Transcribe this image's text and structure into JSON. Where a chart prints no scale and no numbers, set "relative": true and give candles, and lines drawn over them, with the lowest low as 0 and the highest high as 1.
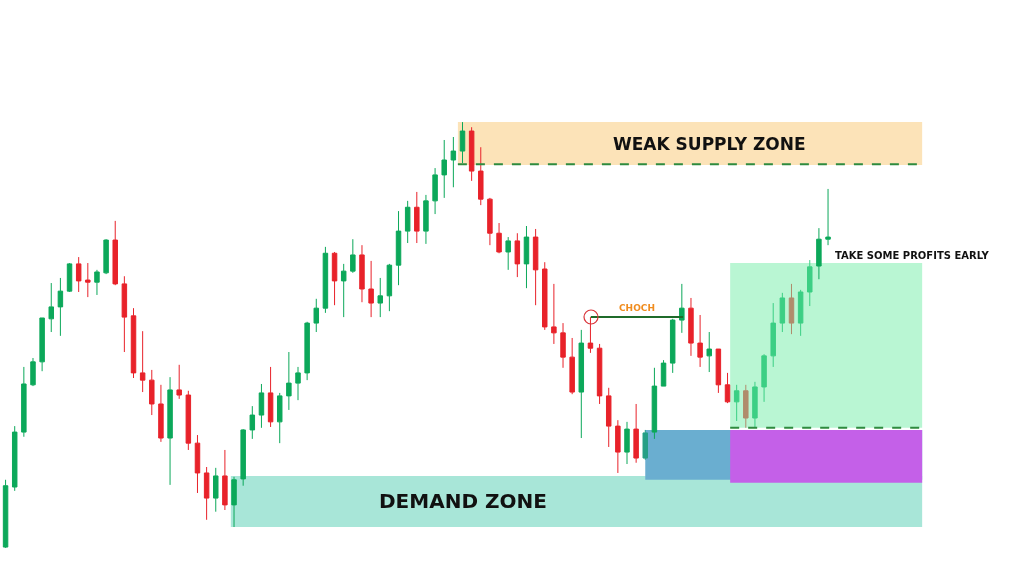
{
  "chart_data": {
    "type": "candlestick",
    "relative": true,
    "categories": [
      null,
      null,
      null,
      null,
      null,
      null,
      null,
      null,
      null,
      null,
      null,
      null,
      null,
      null,
      null,
      null,
      null,
      null,
      null,
      null,
      null,
      null,
      null,
      null,
      null,
      null,
      null,
      null,
      null,
      null,
      null,
      null,
      null,
      null,
      null,
      null,
      null,
      null,
      null,
      null,
      null,
      null,
      null,
      null,
      null,
      null,
      null,
      null,
      null,
      null,
      null,
      null,
      null,
      null,
      null,
      null,
      null,
      null,
      null,
      null,
      null,
      null,
      null,
      null,
      null,
      null,
      null,
      null,
      null,
      null,
      null,
      null,
      null,
      null,
      null,
      null,
      null,
      null,
      null,
      null,
      null,
      null,
      null,
      null,
      null,
      null,
      null,
      null,
      null,
      null,
      null
    ],
    "ohlc": [
      [
        0.002,
        0.16,
        0,
        0.146
      ],
      [
        0.143,
        0.286,
        0.134,
        0.272
      ],
      [
        0.272,
        0.425,
        0.261,
        0.385
      ],
      [
        0.383,
        0.446,
        0.38,
        0.437
      ],
      [
        0.437,
        0.54,
        0.415,
        0.54
      ],
      [
        0.538,
        0.622,
        0.507,
        0.566
      ],
      [
        0.566,
        0.634,
        0.498,
        0.603
      ],
      [
        0.603,
        0.669,
        0.601,
        0.667
      ],
      [
        0.667,
        0.683,
        0.601,
        0.627
      ],
      [
        0.629,
        0.669,
        0.589,
        0.624
      ],
      [
        0.624,
        0.653,
        0.594,
        0.648
      ],
      [
        0.646,
        0.725,
        0.643,
        0.723
      ],
      [
        0.723,
        0.768,
        0.617,
        0.62
      ],
      [
        0.62,
        0.638,
        0.46,
        0.542
      ],
      [
        0.545,
        0.563,
        0.399,
        0.411
      ],
      [
        0.411,
        0.509,
        0.366,
        0.394
      ],
      [
        0.394,
        0.418,
        0.312,
        0.338
      ],
      [
        0.338,
        0.383,
        0.249,
        0.258
      ],
      [
        0.258,
        0.401,
        0.148,
        0.371
      ],
      [
        0.371,
        0.43,
        0.35,
        0.359
      ],
      [
        0.359,
        0.369,
        0.23,
        0.246
      ],
      [
        0.246,
        0.265,
        0.129,
        0.176
      ],
      [
        0.176,
        0.19,
        0.066,
        0.117
      ],
      [
        0.117,
        0.188,
        0.085,
        0.169
      ],
      [
        0.169,
        0.23,
        0.089,
        0.101
      ],
      [
        0.101,
        0.167,
        0.049,
        0.16
      ],
      [
        0.162,
        0.279,
        0.146,
        0.277
      ],
      [
        0.277,
        0.333,
        0.256,
        0.312
      ],
      [
        0.312,
        0.385,
        0.282,
        0.364
      ],
      [
        0.364,
        0.425,
        0.284,
        0.296
      ],
      [
        0.296,
        0.364,
        0.246,
        0.357
      ],
      [
        0.357,
        0.46,
        0.324,
        0.387
      ],
      [
        0.387,
        0.425,
        0.347,
        0.411
      ],
      [
        0.411,
        0.531,
        0.394,
        0.528
      ],
      [
        0.528,
        0.585,
        0.507,
        0.563
      ],
      [
        0.563,
        0.707,
        0.552,
        0.692
      ],
      [
        0.692,
        0.695,
        0.57,
        0.627
      ],
      [
        0.627,
        0.667,
        0.542,
        0.65
      ],
      [
        0.65,
        0.725,
        0.646,
        0.688
      ],
      [
        0.688,
        0.711,
        0.577,
        0.608
      ],
      [
        0.608,
        0.674,
        0.542,
        0.575
      ],
      [
        0.575,
        0.634,
        0.542,
        0.592
      ],
      [
        0.592,
        0.667,
        0.556,
        0.664
      ],
      [
        0.664,
        0.791,
        0.617,
        0.744
      ],
      [
        0.744,
        0.815,
        0.716,
        0.8
      ],
      [
        0.8,
        0.836,
        0.716,
        0.744
      ],
      [
        0.744,
        0.829,
        0.714,
        0.815
      ],
      [
        0.815,
        0.892,
        0.784,
        0.876
      ],
      [
        0.876,
        0.958,
        0.822,
        0.911
      ],
      [
        0.911,
        0.965,
        0.847,
        0.932
      ],
      [
        0.932,
        1,
        0.904,
        0.979
      ],
      [
        0.979,
        0.988,
        0.862,
        0.885
      ],
      [
        0.885,
        0.941,
        0.805,
        0.819
      ],
      [
        0.819,
        0.822,
        0.711,
        0.739
      ],
      [
        0.739,
        0.763,
        0.692,
        0.695
      ],
      [
        0.695,
        0.73,
        0.653,
        0.721
      ],
      [
        0.721,
        0.739,
        0.636,
        0.667
      ],
      [
        0.667,
        0.756,
        0.61,
        0.73
      ],
      [
        0.73,
        0.749,
        0.57,
        0.653
      ],
      [
        0.655,
        0.671,
        0.512,
        0.519
      ],
      [
        0.519,
        0.62,
        0.479,
        0.505
      ],
      [
        0.505,
        0.528,
        0.423,
        0.448
      ],
      [
        0.448,
        0.493,
        0.361,
        0.366
      ],
      [
        0.366,
        0.512,
        0.258,
        0.481
      ],
      [
        0.481,
        0.542,
        0.458,
        0.469
      ],
      [
        0.469,
        0.479,
        0.338,
        0.357
      ],
      [
        0.357,
        0.376,
        0.237,
        0.286
      ],
      [
        0.286,
        0.3,
        0.176,
        0.225
      ],
      [
        0.225,
        0.296,
        0.197,
        0.279
      ],
      [
        0.279,
        0.338,
        0.2,
        0.211
      ],
      [
        0.211,
        0.277,
        0.207,
        0.27
      ],
      [
        0.272,
        0.423,
        0.256,
        0.38
      ],
      [
        0.38,
        0.441,
        0.38,
        0.434
      ],
      [
        0.434,
        0.538,
        0.411,
        0.535
      ],
      [
        0.535,
        0.62,
        0.505,
        0.563
      ],
      [
        0.563,
        0.587,
        0.451,
        0.481
      ],
      [
        0.481,
        0.547,
        0.425,
        0.448
      ],
      [
        0.451,
        0.507,
        0.413,
        0.467
      ],
      [
        0.467,
        0.467,
        0.364,
        0.383
      ],
      [
        0.383,
        0.411,
        0.34,
        0.343
      ],
      [
        0.343,
        0.383,
        0.298,
        0.369
      ],
      [
        0.369,
        0.383,
        0.282,
        0.305
      ],
      [
        0.305,
        0.39,
        0.282,
        0.378
      ],
      [
        0.378,
        0.455,
        0.343,
        0.451
      ],
      [
        0.451,
        0.575,
        0.425,
        0.528
      ],
      [
        0.528,
        0.599,
        0.507,
        0.587
      ],
      [
        0.587,
        0.62,
        0.502,
        0.528
      ],
      [
        0.528,
        0.606,
        0.498,
        0.601
      ],
      [
        0.601,
        0.676,
        0.568,
        0.66
      ],
      [
        0.662,
        0.751,
        0.631,
        0.725
      ],
      [
        0.725,
        0.843,
        0.711,
        0.73
      ]
    ],
    "colors": [
      "#0ca85a",
      "#0ca85a",
      "#0ca85a",
      "#0ca85a",
      "#0ca85a",
      "#0ca85a",
      "#0ca85a",
      "#0ca85a",
      "#e8222a",
      "#e8222a",
      "#0ca85a",
      "#0ca85a",
      "#e8222a",
      "#e8222a",
      "#e8222a",
      "#e8222a",
      "#e8222a",
      "#e8222a",
      "#0ca85a",
      "#e8222a",
      "#e8222a",
      "#e8222a",
      "#e8222a",
      "#0ca85a",
      "#e8222a",
      "#0ca85a",
      "#0ca85a",
      "#0ca85a",
      "#0ca85a",
      "#e8222a",
      "#0ca85a",
      "#0ca85a",
      "#0ca85a",
      "#0ca85a",
      "#0ca85a",
      "#0ca85a",
      "#e8222a",
      "#0ca85a",
      "#0ca85a",
      "#e8222a",
      "#e8222a",
      "#0ca85a",
      "#0ca85a",
      "#0ca85a",
      "#0ca85a",
      "#e8222a",
      "#0ca85a",
      "#0ca85a",
      "#0ca85a",
      "#0ca85a",
      "#0ca85a",
      "#e8222a",
      "#e8222a",
      "#e8222a",
      "#e8222a",
      "#0ca85a",
      "#e8222a",
      "#0ca85a",
      "#e8222a",
      "#e8222a",
      "#e8222a",
      "#e8222a",
      "#e8222a",
      "#0ca85a",
      "#e8222a",
      "#e8222a",
      "#e8222a",
      "#e8222a",
      "#0ca85a",
      "#e8222a",
      "#259f86",
      "#0ca85a",
      "#0ca85a",
      "#0ca85a",
      "#0ca85a",
      "#e8222a",
      "#e8222a",
      "#0ca85a",
      "#e8222a",
      "#e8222a",
      "#3ccf84",
      "#b08c6c",
      "#3ccf84",
      "#3ccf84",
      "#3ccf84",
      "#3ccf84",
      "#b08c6c",
      "#3ccf84",
      "#3ccf84",
      "#0ca85a",
      "#0ca85a"
    ],
    "bands": [
      {
        "axis": "y",
        "from": 0.899,
        "to": 1,
        "label": "WEAK SUPPLY ZONE",
        "color": "#fce3b8"
      },
      {
        "axis": "y",
        "from": 0.049,
        "to": 0.169,
        "label": "DEMAND ZONE",
        "color": "#a8e6d8"
      },
      {
        "axis": "y",
        "from": 0.16,
        "to": 0.277,
        "color": "#6aaed0"
      },
      {
        "axis": "y",
        "from": 0.153,
        "to": 0.277,
        "color": "#c460e8"
      },
      {
        "axis": "y",
        "from": 0.282,
        "to": 0.669,
        "color": "#b9f6d3"
      }
    ],
    "ref_lines": [
      {
        "axis": "y",
        "value": 0.901,
        "color": "#2e8b3e",
        "line_style": "dashed"
      },
      {
        "axis": "y",
        "value": 0.282,
        "color": "#2e8b3e",
        "line_style": "dashed"
      },
      {
        "axis": "y",
        "value": 0.542,
        "color": "#1f6b2a",
        "line_style": "solid",
        "label": "CHOCH"
      }
    ],
    "annotations": [
      "TAKE SOME PROFITS EARLY"
    ]
  }
}
